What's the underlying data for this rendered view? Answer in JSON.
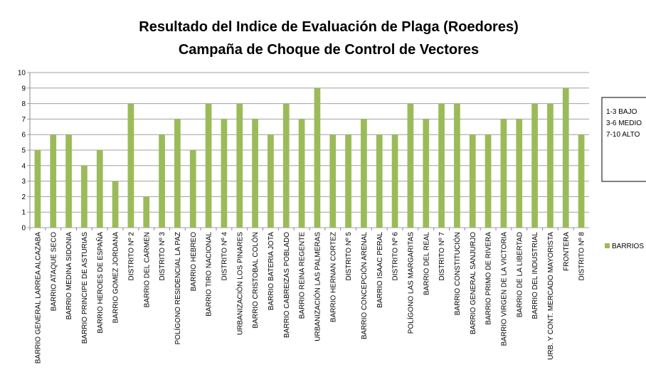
{
  "chart_data": {
    "type": "bar",
    "title": "Resultado del Indice de Evaluación de Plaga (Roedores)",
    "subtitle": "Campaña de Choque de Control de Vectores",
    "annotations": [
      "1-3 BAJO",
      "3-6 MEDIO",
      "7-10 ALTO"
    ],
    "categories": [
      "BARRIO GENERAL LARREA ALCAZABA",
      "BARRIO ATAQUE SECO",
      "BARRIO MEDINA SIDONIA",
      "BARRIO PRINCIPE DE ASTURIAS",
      "BARRIO HEROES DE ESPAÑA",
      "BARRIO GOMEZ JORDANA",
      "DISTRITO Nº 2",
      "BARRIO DEL CARMEN",
      "DISTRITO Nº 3",
      "POLÍGONO RESIDENCIAL LA PAZ",
      "BARRIO HEBREO",
      "BARRIO TIRO NACIONAL",
      "DISTRITO Nº 4",
      "URBANIZACIÓN LOS PINARES",
      "BARRIO CRISTOBAL COLÓN",
      "BARRIO BATERIA JOTA",
      "BARRIO CABREIZAS POBLADO",
      "BARRIO REINA REGENTE",
      "URBANIZACIÓN LAS PALMERAS",
      "BARRIO HERNAN CORTEZ",
      "DISTRITO Nº 5",
      "BARRIO CONCEPCIÓN ARENAL",
      "BARRIO ISAAC PERAL",
      "DISTRITO Nº 6",
      "POLÍGONO LAS MARGARITAS",
      "BARRIO DEL REAL",
      "DISTRITO Nº 7",
      "BARRIO CONSTITUCIÓN",
      "BARRIO GENERAL SANJURJO",
      "BARRIO PRIMO DE RIVERA",
      "BARRIO VIRGEN DE LA VICTORIA",
      "BARRIO DE LA LIBERTAD",
      "BARRIO DEL INDUSTRIAL",
      "URB. Y CONT. MERCADO MAYORISTA",
      "FRONTERA",
      "DISTRITO Nº 8"
    ],
    "series": [
      {
        "name": "BARRIOS",
        "color": "#9bbb59",
        "values": [
          5,
          6,
          6,
          4,
          5,
          3,
          8,
          2,
          6,
          7,
          5,
          8,
          7,
          8,
          7,
          6,
          8,
          7,
          9,
          6,
          6,
          7,
          6,
          6,
          8,
          7,
          8,
          8,
          6,
          6,
          7,
          7,
          8,
          8,
          9,
          6
        ]
      }
    ],
    "ylim": [
      0,
      10
    ],
    "yticks": [
      0,
      1,
      2,
      3,
      4,
      5,
      6,
      7,
      8,
      9,
      10
    ],
    "grid": true,
    "legend": "right"
  }
}
